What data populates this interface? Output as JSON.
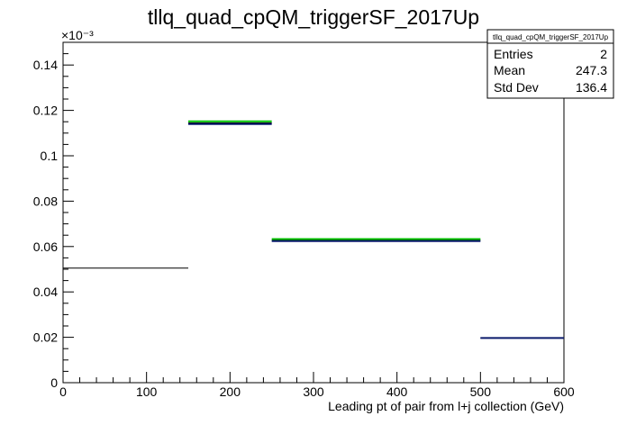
{
  "chart_data": {
    "type": "histogram",
    "title": "tllq_quad_cpQM_triggerSF_2017Up",
    "xlabel": "Leading pt of pair from l+j collection (GeV)",
    "ylabel": "",
    "xlim": [
      0,
      600
    ],
    "ylim": [
      0,
      0.15
    ],
    "y_exponent_label": "×10⁻³",
    "x_ticks": [
      0,
      100,
      200,
      300,
      400,
      500,
      600
    ],
    "x_tick_labels": [
      "0",
      "100",
      "200",
      "300",
      "400",
      "500",
      "600"
    ],
    "y_ticks": [
      0,
      0.02,
      0.04,
      0.06,
      0.08,
      0.1,
      0.12,
      0.14
    ],
    "y_tick_labels": [
      "0",
      "0.02",
      "0.04",
      "0.06",
      "0.08",
      "0.1",
      "0.12",
      "0.14"
    ],
    "bin_edges": [
      0,
      150,
      250,
      500,
      600
    ],
    "series": [
      {
        "color": "#000000",
        "values": [
          0.0505,
          0.1145,
          0.0628,
          0.0197
        ]
      },
      {
        "color": "#00c000",
        "values": [
          null,
          0.1152,
          0.0633,
          null
        ]
      },
      {
        "color": "#0a1a6b",
        "values": [
          null,
          0.114,
          0.0624,
          0.0197
        ]
      }
    ],
    "stats_box": {
      "title": "tllq_quad_cpQM_triggerSF_2017Up",
      "rows": [
        {
          "label": "Entries",
          "value": "2"
        },
        {
          "label": "Mean",
          "value": "247.3"
        },
        {
          "label": "Std Dev",
          "value": "136.4"
        }
      ]
    },
    "grid": false,
    "legend": "none"
  }
}
